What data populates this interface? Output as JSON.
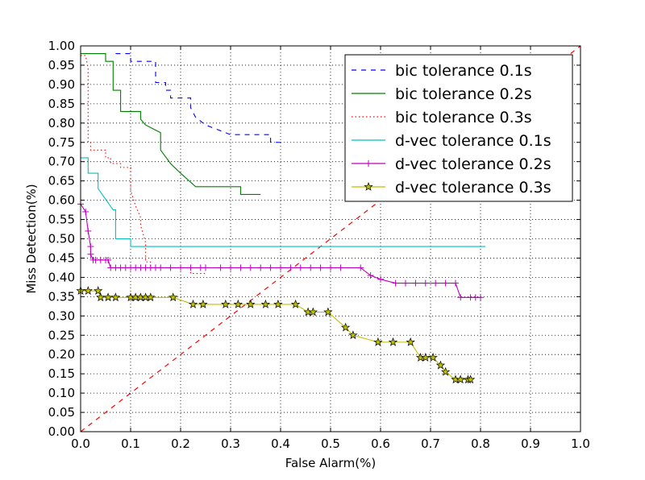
{
  "chart_data": {
    "type": "line",
    "xlabel": "False Alarm(%)",
    "ylabel": "Miss Detection(%)",
    "xlim": [
      0.0,
      1.0
    ],
    "ylim": [
      0.0,
      1.0
    ],
    "xticks": [
      "0.0",
      "0.1",
      "0.2",
      "0.3",
      "0.4",
      "0.5",
      "0.6",
      "0.7",
      "0.8",
      "0.9",
      "1.0"
    ],
    "yticks": [
      "0.00",
      "0.05",
      "0.10",
      "0.15",
      "0.20",
      "0.25",
      "0.30",
      "0.35",
      "0.40",
      "0.45",
      "0.50",
      "0.55",
      "0.60",
      "0.65",
      "0.70",
      "0.75",
      "0.80",
      "0.85",
      "0.90",
      "0.95",
      "1.00"
    ],
    "grid": true,
    "legend_position": "top-right",
    "reference_line": {
      "x": [
        0.0,
        1.0
      ],
      "y": [
        0.0,
        1.0
      ],
      "color": "#ff0000",
      "style": "dashed"
    },
    "series": [
      {
        "name": "bic tolerance 0.1s",
        "color": "#0000ff",
        "style": "dashed",
        "marker": "none",
        "x": [
          0.07,
          0.1,
          0.1,
          0.12,
          0.15,
          0.15,
          0.17,
          0.17,
          0.18,
          0.18,
          0.2,
          0.22,
          0.22,
          0.23,
          0.25,
          0.27,
          0.3,
          0.32,
          0.35,
          0.38,
          0.38,
          0.4,
          0.41
        ],
        "y": [
          0.98,
          0.98,
          0.96,
          0.96,
          0.96,
          0.905,
          0.905,
          0.885,
          0.885,
          0.865,
          0.865,
          0.865,
          0.84,
          0.815,
          0.795,
          0.785,
          0.77,
          0.77,
          0.77,
          0.77,
          0.75,
          0.75,
          0.75
        ]
      },
      {
        "name": "bic tolerance 0.2s",
        "color": "#008000",
        "style": "solid",
        "marker": "none",
        "x": [
          0.0,
          0.05,
          0.05,
          0.065,
          0.065,
          0.08,
          0.08,
          0.1,
          0.12,
          0.12,
          0.13,
          0.16,
          0.16,
          0.18,
          0.18,
          0.2,
          0.23,
          0.25,
          0.32,
          0.32,
          0.36
        ],
        "y": [
          0.98,
          0.98,
          0.96,
          0.96,
          0.885,
          0.885,
          0.83,
          0.83,
          0.83,
          0.81,
          0.795,
          0.775,
          0.73,
          0.695,
          0.695,
          0.67,
          0.635,
          0.635,
          0.635,
          0.615,
          0.615
        ]
      },
      {
        "name": "bic tolerance 0.3s",
        "color": "#ff0000",
        "style": "dotted",
        "marker": "none",
        "x": [
          0.0,
          0.01,
          0.015,
          0.015,
          0.02,
          0.02,
          0.05,
          0.05,
          0.06,
          0.06,
          0.08,
          0.08,
          0.1,
          0.1,
          0.11,
          0.12,
          0.12,
          0.13,
          0.13,
          0.14,
          0.14,
          0.22,
          0.22,
          0.25
        ],
        "y": [
          0.975,
          0.975,
          0.94,
          0.75,
          0.75,
          0.73,
          0.73,
          0.71,
          0.71,
          0.695,
          0.695,
          0.685,
          0.685,
          0.625,
          0.585,
          0.555,
          0.535,
          0.49,
          0.44,
          0.44,
          0.425,
          0.425,
          0.41,
          0.41
        ]
      },
      {
        "name": "d-vec tolerance 0.1s",
        "color": "#00bfbf",
        "style": "solid",
        "marker": "none",
        "x": [
          0.0,
          0.015,
          0.015,
          0.035,
          0.035,
          0.065,
          0.07,
          0.07,
          0.1,
          0.1,
          0.13,
          0.81
        ],
        "y": [
          0.71,
          0.71,
          0.67,
          0.67,
          0.63,
          0.575,
          0.575,
          0.5,
          0.5,
          0.48,
          0.48,
          0.48
        ]
      },
      {
        "name": "d-vec tolerance 0.2s",
        "color": "#bf00bf",
        "style": "solid",
        "marker": "plus",
        "x": [
          0.0,
          0.01,
          0.015,
          0.02,
          0.02,
          0.025,
          0.03,
          0.04,
          0.05,
          0.055,
          0.06,
          0.07,
          0.08,
          0.09,
          0.1,
          0.11,
          0.12,
          0.13,
          0.14,
          0.15,
          0.16,
          0.18,
          0.2,
          0.22,
          0.24,
          0.25,
          0.28,
          0.3,
          0.32,
          0.34,
          0.36,
          0.38,
          0.4,
          0.42,
          0.44,
          0.46,
          0.48,
          0.5,
          0.52,
          0.56,
          0.58,
          0.6,
          0.63,
          0.65,
          0.67,
          0.69,
          0.71,
          0.73,
          0.75,
          0.76,
          0.78,
          0.79,
          0.8
        ],
        "y": [
          0.59,
          0.57,
          0.52,
          0.48,
          0.46,
          0.445,
          0.445,
          0.445,
          0.445,
          0.445,
          0.425,
          0.425,
          0.425,
          0.425,
          0.425,
          0.425,
          0.425,
          0.425,
          0.425,
          0.425,
          0.425,
          0.425,
          0.425,
          0.425,
          0.425,
          0.425,
          0.425,
          0.425,
          0.425,
          0.425,
          0.425,
          0.425,
          0.425,
          0.425,
          0.425,
          0.425,
          0.425,
          0.425,
          0.425,
          0.425,
          0.405,
          0.395,
          0.385,
          0.385,
          0.385,
          0.385,
          0.385,
          0.385,
          0.385,
          0.348,
          0.348,
          0.348,
          0.348
        ]
      },
      {
        "name": "d-vec tolerance 0.3s",
        "color": "#bfbf00",
        "style": "solid",
        "marker": "star",
        "x": [
          0.0,
          0.015,
          0.035,
          0.04,
          0.055,
          0.07,
          0.1,
          0.11,
          0.12,
          0.13,
          0.14,
          0.185,
          0.225,
          0.245,
          0.29,
          0.315,
          0.34,
          0.37,
          0.395,
          0.43,
          0.455,
          0.465,
          0.495,
          0.53,
          0.545,
          0.595,
          0.625,
          0.66,
          0.68,
          0.69,
          0.705,
          0.72,
          0.73,
          0.75,
          0.76,
          0.775,
          0.78
        ],
        "y": [
          0.365,
          0.365,
          0.365,
          0.348,
          0.348,
          0.348,
          0.348,
          0.348,
          0.348,
          0.348,
          0.348,
          0.348,
          0.33,
          0.33,
          0.33,
          0.33,
          0.33,
          0.33,
          0.33,
          0.33,
          0.31,
          0.31,
          0.31,
          0.27,
          0.25,
          0.232,
          0.232,
          0.232,
          0.192,
          0.192,
          0.192,
          0.172,
          0.155,
          0.135,
          0.135,
          0.135,
          0.135
        ]
      }
    ]
  }
}
